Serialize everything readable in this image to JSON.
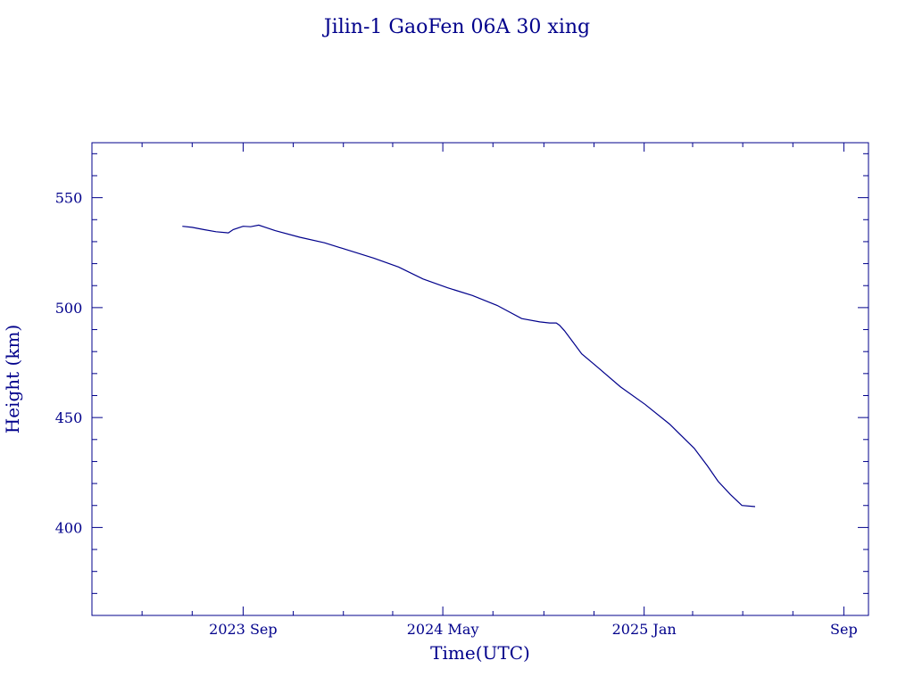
{
  "chart_data": {
    "type": "line",
    "title": "Jilin-1 GaoFen 06A 30 xing",
    "xlabel": "Time(UTC)",
    "ylabel": "Height (km)",
    "x_ticks": [
      "2023 Sep",
      "2024 May",
      "2025 Jan",
      "Sep"
    ],
    "xlim": [
      "2023-03-01",
      "2025-10-01"
    ],
    "ylim": [
      360,
      575
    ],
    "y_ticks": [
      400,
      450,
      500,
      550
    ],
    "grid": false,
    "color": "#00008b",
    "series": [
      {
        "x": [
          "2023-06-19",
          "2023-07-01",
          "2023-07-15",
          "2023-07-30",
          "2023-08-14",
          "2023-08-20",
          "2023-09-01",
          "2023-09-10",
          "2023-09-20",
          "2023-10-10",
          "2023-11-09",
          "2023-12-09",
          "2024-01-08",
          "2024-02-07",
          "2024-03-08",
          "2024-04-07",
          "2024-05-07",
          "2024-06-06",
          "2024-07-06",
          "2024-08-05",
          "2024-08-27",
          "2024-09-08",
          "2024-09-16",
          "2024-09-20",
          "2024-09-26",
          "2024-10-05",
          "2024-10-17",
          "2024-11-05",
          "2024-12-03",
          "2025-01-02",
          "2025-02-01",
          "2025-03-03",
          "2025-03-19",
          "2025-04-01",
          "2025-04-16",
          "2025-04-30",
          "2025-05-16"
        ],
        "y": [
          537,
          536.5,
          535.5,
          534.5,
          534,
          535.5,
          537,
          536.8,
          537.5,
          535,
          532,
          529.5,
          526,
          522.5,
          518.5,
          513,
          509,
          505.5,
          501,
          495,
          493.5,
          493,
          493,
          492,
          489.5,
          485,
          479,
          473,
          464,
          456,
          447,
          436,
          428,
          421,
          415,
          410,
          409.5
        ]
      }
    ]
  }
}
